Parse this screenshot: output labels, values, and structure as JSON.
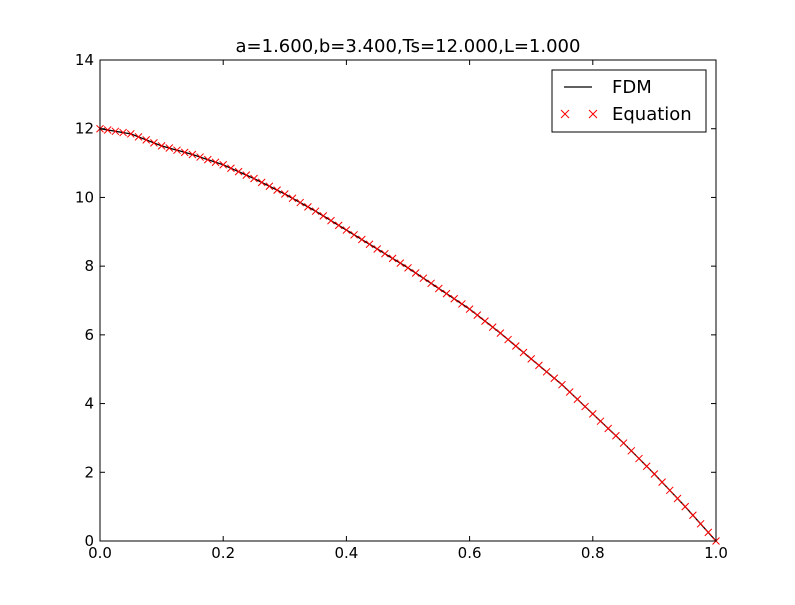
{
  "chart_data": {
    "type": "line",
    "title": "a=1.600,b=3.400,Ts=12.000,L=1.000",
    "xlabel": "",
    "ylabel": "",
    "xlim": [
      0.0,
      1.0
    ],
    "ylim": [
      0,
      14
    ],
    "xticks": [
      0.0,
      0.2,
      0.4,
      0.6,
      0.8,
      1.0
    ],
    "xtick_labels": [
      "0.0",
      "0.2",
      "0.4",
      "0.6",
      "0.8",
      "1.0"
    ],
    "yticks": [
      0,
      2,
      4,
      6,
      8,
      10,
      12,
      14
    ],
    "ytick_labels": [
      "0",
      "2",
      "4",
      "6",
      "8",
      "10",
      "12",
      "14"
    ],
    "grid": false,
    "legend_placement": "top-right",
    "series": [
      {
        "name": "FDM",
        "style": "line",
        "color": "#000000",
        "x": [
          0.0,
          0.05,
          0.1,
          0.15,
          0.2,
          0.25,
          0.3,
          0.35,
          0.4,
          0.45,
          0.5,
          0.55,
          0.6,
          0.65,
          0.7,
          0.75,
          0.8,
          0.85,
          0.9,
          0.95,
          1.0
        ],
        "y": [
          12.0,
          11.85,
          11.5,
          11.25,
          10.95,
          10.55,
          10.1,
          9.6,
          9.05,
          8.5,
          7.95,
          7.35,
          6.75,
          6.05,
          5.3,
          4.55,
          3.7,
          2.85,
          1.95,
          1.0,
          0.0
        ]
      },
      {
        "name": "Equation",
        "style": "x-marker",
        "color": "#ff0000",
        "x": [
          0.0,
          0.05,
          0.1,
          0.15,
          0.2,
          0.25,
          0.3,
          0.35,
          0.4,
          0.45,
          0.5,
          0.55,
          0.6,
          0.65,
          0.7,
          0.75,
          0.8,
          0.85,
          0.9,
          0.95,
          1.0
        ],
        "y": [
          12.0,
          11.85,
          11.5,
          11.25,
          10.95,
          10.55,
          10.1,
          9.6,
          9.05,
          8.5,
          7.95,
          7.35,
          6.75,
          6.05,
          5.3,
          4.55,
          3.7,
          2.85,
          1.95,
          1.0,
          0.0
        ]
      }
    ]
  }
}
